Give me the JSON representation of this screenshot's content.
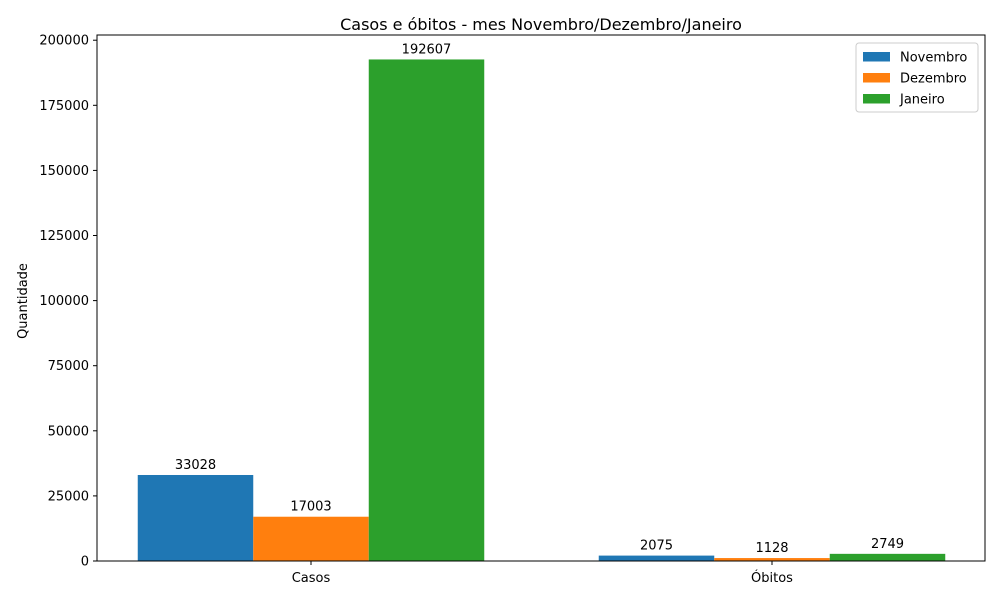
{
  "chart_data": {
    "type": "bar",
    "title": "Casos e óbitos - mes Novembro/Dezembro/Janeiro",
    "xlabel": "",
    "ylabel": "Quantidade",
    "categories": [
      "Casos",
      "Óbitos"
    ],
    "series": [
      {
        "name": "Novembro",
        "color": "#1f77b4",
        "values": [
          33028,
          2075
        ]
      },
      {
        "name": "Dezembro",
        "color": "#ff7f0e",
        "values": [
          17003,
          1128
        ]
      },
      {
        "name": "Janeiro",
        "color": "#2ca02c",
        "values": [
          192607,
          2749
        ]
      }
    ],
    "ylim": [
      0,
      202000
    ],
    "yticks": [
      0,
      25000,
      50000,
      75000,
      100000,
      125000,
      150000,
      175000,
      200000
    ],
    "legend_position": "top-right",
    "grid": false
  }
}
